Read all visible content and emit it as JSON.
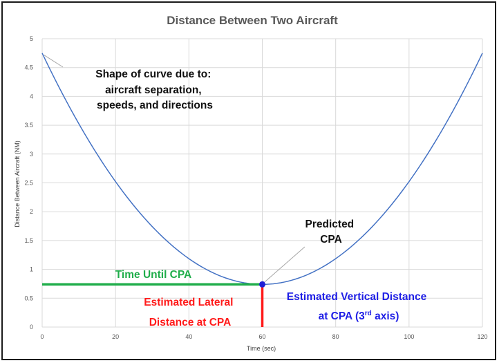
{
  "chart_data": {
    "type": "line",
    "title": "Distance Between Two Aircraft",
    "xlabel": "Time (sec)",
    "ylabel": "Distance Between Aircraft (NM)",
    "xlim": [
      0,
      120
    ],
    "ylim": [
      0,
      5
    ],
    "x_ticks": [
      "0",
      "20",
      "40",
      "60",
      "80",
      "100",
      "120"
    ],
    "y_ticks": [
      "0",
      "0.5",
      "1",
      "1.5",
      "2",
      "2.5",
      "3",
      "3.5",
      "4",
      "4.5",
      "5"
    ],
    "grid": true,
    "series": [
      {
        "color": "#4472c4",
        "x": [
          0,
          10,
          20,
          30,
          40,
          50,
          60,
          70,
          80,
          90,
          100,
          110,
          120
        ],
        "y": [
          4.75,
          3.56,
          2.59,
          1.79,
          1.2,
          0.86,
          0.74,
          0.86,
          1.2,
          1.79,
          2.59,
          3.56,
          4.75
        ]
      }
    ],
    "cpa_point": {
      "x": 60,
      "y": 0.74
    },
    "annotations": {
      "shape_lines": [
        "Shape of curve due to:",
        "aircraft separation,",
        "speeds, and directions"
      ],
      "predicted_lines": [
        "Predicted",
        "CPA"
      ],
      "time_until": "Time Until CPA",
      "lateral_lines": [
        "Estimated Lateral",
        "Distance at CPA"
      ],
      "vertical_line1": "Estimated Vertical Distance",
      "vertical_line2_pre": "at CPA (3",
      "vertical_line2_sup": "rd",
      "vertical_line2_post": " axis)"
    },
    "colors": {
      "curve": "#4472c4",
      "time_until": "#1fad4a",
      "lateral": "#ff1a1a",
      "vertical": "#1f1fe6",
      "cpa_dot": "#1f1fd6"
    }
  }
}
